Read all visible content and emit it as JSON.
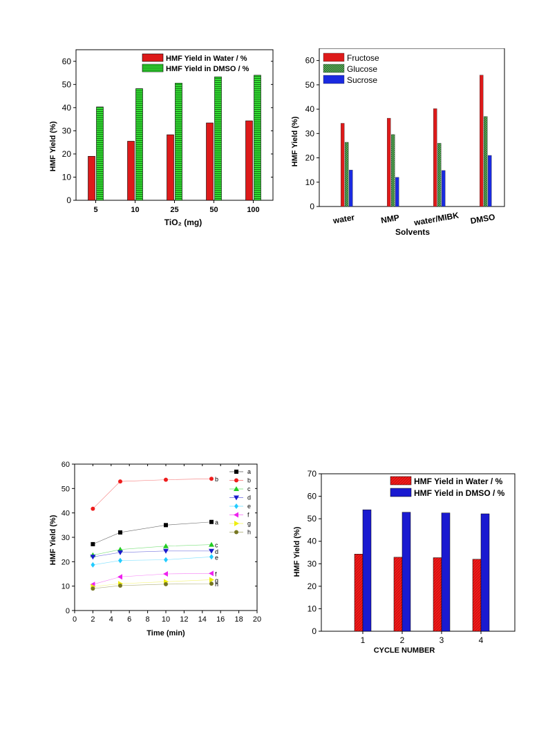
{
  "chart_data": [
    {
      "type": "bar",
      "categories": [
        "5",
        "10",
        "25",
        "50",
        "100"
      ],
      "series": [
        {
          "name": "HMF Yield in Water / %",
          "values": [
            19,
            25.5,
            28.3,
            33.4,
            34.3
          ],
          "color": "#dd1a1a"
        },
        {
          "name": "HMF Yield in DMSO / %",
          "values": [
            40.3,
            48.2,
            50.6,
            53.3,
            54
          ],
          "color": "#33dd33"
        }
      ],
      "xlabel": "TiO₂ (mg)",
      "ylabel": "HMF Yield (%)",
      "ylim": [
        0,
        65
      ],
      "yticks": [
        0,
        10,
        20,
        30,
        40,
        50,
        60
      ],
      "legend": "top-right"
    },
    {
      "type": "bar",
      "categories": [
        "water",
        "NMP",
        "water/MIBK",
        "DMSO"
      ],
      "series": [
        {
          "name": "Fructose",
          "values": [
            34.2,
            36.3,
            40.2,
            54
          ],
          "color": "#dd1a1a"
        },
        {
          "name": "Glucose",
          "values": [
            26.4,
            29.6,
            26,
            37
          ],
          "color": "#1e5e1e"
        },
        {
          "name": "Sucrose",
          "values": [
            15,
            12,
            14.8,
            21
          ],
          "color": "#1a2ae0"
        }
      ],
      "xlabel": "Solvents",
      "ylabel": "HMF Yield (%)",
      "ylim": [
        0,
        65
      ],
      "yticks": [
        0,
        10,
        20,
        30,
        40,
        50,
        60
      ],
      "legend": "top-left"
    },
    {
      "type": "line",
      "x": [
        2,
        5,
        10,
        15
      ],
      "series": [
        {
          "name": "a",
          "values": [
            27.2,
            32,
            35,
            36.3
          ],
          "color": "#000000"
        },
        {
          "name": "b",
          "values": [
            41.7,
            52.9,
            53.6,
            54
          ],
          "color": "#ee1c1c"
        },
        {
          "name": "c",
          "values": [
            22.7,
            25,
            26.4,
            27
          ],
          "color": "#22cc22"
        },
        {
          "name": "d",
          "values": [
            22,
            23.8,
            24.4,
            24.4
          ],
          "color": "#1a1acc"
        },
        {
          "name": "e",
          "values": [
            18.7,
            20.5,
            20.8,
            22
          ],
          "color": "#22ccff"
        },
        {
          "name": "f",
          "values": [
            10.7,
            13.8,
            15,
            15.2
          ],
          "color": "#ee22ee"
        },
        {
          "name": "g",
          "values": [
            9.8,
            11,
            11.8,
            12.6
          ],
          "color": "#eeee11"
        },
        {
          "name": "h",
          "values": [
            9,
            10.2,
            10.8,
            11
          ],
          "color": "#777722"
        }
      ],
      "xlabel": "Time (min)",
      "ylabel": "HMF Yield (%)",
      "xlim": [
        0,
        20
      ],
      "ylim": [
        0,
        60
      ],
      "xticks": [
        0,
        2,
        4,
        6,
        8,
        10,
        12,
        14,
        16,
        18,
        20
      ],
      "yticks": [
        0,
        10,
        20,
        30,
        40,
        50,
        60
      ],
      "legend": "top-right"
    },
    {
      "type": "bar",
      "categories": [
        "1",
        "2",
        "3",
        "4"
      ],
      "series": [
        {
          "name": "HMF Yield in Water / %",
          "values": [
            34.3,
            32.9,
            32.7,
            32
          ],
          "color": "#ee1c1c"
        },
        {
          "name": "HMF Yield in DMSO / %",
          "values": [
            54,
            52.9,
            52.6,
            52.2
          ],
          "color": "#1a1ad0"
        }
      ],
      "xlabel": "CYCLE NUMBER",
      "ylabel": "HMF Yield (%)",
      "ylim": [
        0,
        70
      ],
      "yticks": [
        0,
        10,
        20,
        30,
        40,
        50,
        60,
        70
      ],
      "legend": "top-right"
    }
  ]
}
